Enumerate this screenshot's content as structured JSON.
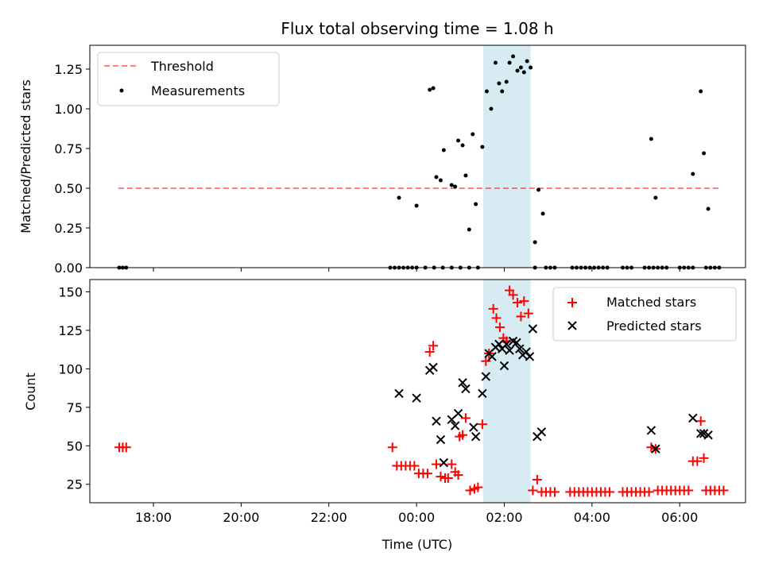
{
  "chart_data": [
    {
      "type": "scatter",
      "title": "Flux total observing time = 1.08 h",
      "xlabel": "",
      "ylabel": "Matched/Predicted stars",
      "xlim": [
        16.55,
        31.5
      ],
      "ylim": [
        0,
        1.4
      ],
      "y_ticks": [
        0,
        0.25,
        0.5,
        0.75,
        1.0,
        1.25
      ],
      "y_tick_labels": [
        "0.00",
        "0.25",
        "0.50",
        "0.75",
        "1.00",
        "1.25"
      ],
      "x_ticks": [
        18,
        20,
        22,
        24,
        26,
        28,
        30
      ],
      "highlight_span": [
        25.52,
        26.6
      ],
      "legend": {
        "position": "upper-left",
        "entries": [
          "Threshold",
          "Measurements"
        ]
      },
      "threshold": {
        "name": "Threshold",
        "value": 0.5,
        "x": [
          17.2,
          30.95
        ]
      },
      "series": [
        {
          "name": "Measurements",
          "points": [
            [
              17.22,
              0
            ],
            [
              17.3,
              0
            ],
            [
              17.38,
              0
            ],
            [
              23.4,
              0
            ],
            [
              23.5,
              0
            ],
            [
              23.6,
              0
            ],
            [
              23.7,
              0
            ],
            [
              23.8,
              0
            ],
            [
              23.9,
              0
            ],
            [
              24.0,
              0
            ],
            [
              24.2,
              0
            ],
            [
              24.4,
              0
            ],
            [
              24.6,
              0
            ],
            [
              24.8,
              0
            ],
            [
              25.0,
              0
            ],
            [
              25.2,
              0
            ],
            [
              25.4,
              0
            ],
            [
              26.7,
              0
            ],
            [
              26.95,
              0
            ],
            [
              27.05,
              0
            ],
            [
              27.15,
              0
            ],
            [
              27.55,
              0
            ],
            [
              27.65,
              0
            ],
            [
              27.75,
              0
            ],
            [
              27.85,
              0
            ],
            [
              27.95,
              0
            ],
            [
              28.05,
              0
            ],
            [
              28.15,
              0
            ],
            [
              28.25,
              0
            ],
            [
              28.35,
              0
            ],
            [
              28.7,
              0
            ],
            [
              28.8,
              0
            ],
            [
              28.9,
              0
            ],
            [
              29.2,
              0
            ],
            [
              29.3,
              0
            ],
            [
              29.4,
              0
            ],
            [
              29.5,
              0
            ],
            [
              29.6,
              0
            ],
            [
              29.7,
              0
            ],
            [
              30.0,
              0
            ],
            [
              30.1,
              0
            ],
            [
              30.2,
              0
            ],
            [
              30.3,
              0
            ],
            [
              30.6,
              0
            ],
            [
              30.7,
              0
            ],
            [
              30.8,
              0
            ],
            [
              30.9,
              0
            ],
            [
              23.6,
              0.44
            ],
            [
              24.0,
              0.39
            ],
            [
              24.3,
              1.12
            ],
            [
              24.38,
              1.13
            ],
            [
              24.45,
              0.57
            ],
            [
              24.55,
              0.55
            ],
            [
              24.62,
              0.74
            ],
            [
              24.8,
              0.52
            ],
            [
              24.88,
              0.51
            ],
            [
              24.95,
              0.8
            ],
            [
              25.05,
              0.77
            ],
            [
              25.12,
              0.58
            ],
            [
              25.2,
              0.24
            ],
            [
              25.28,
              0.84
            ],
            [
              25.35,
              0.4
            ],
            [
              25.5,
              0.76
            ],
            [
              25.6,
              1.11
            ],
            [
              25.7,
              1.0
            ],
            [
              25.8,
              1.29
            ],
            [
              25.88,
              1.16
            ],
            [
              25.95,
              1.11
            ],
            [
              26.05,
              1.17
            ],
            [
              26.12,
              1.29
            ],
            [
              26.2,
              1.33
            ],
            [
              26.3,
              1.24
            ],
            [
              26.38,
              1.26
            ],
            [
              26.45,
              1.23
            ],
            [
              26.52,
              1.3
            ],
            [
              26.6,
              1.26
            ],
            [
              26.7,
              0.16
            ],
            [
              26.78,
              0.49
            ],
            [
              26.88,
              0.34
            ],
            [
              29.35,
              0.81
            ],
            [
              29.45,
              0.44
            ],
            [
              30.3,
              0.59
            ],
            [
              30.48,
              1.11
            ],
            [
              30.55,
              0.72
            ],
            [
              30.65,
              0.37
            ]
          ]
        }
      ]
    },
    {
      "type": "scatter",
      "title": "",
      "xlabel": "Time (UTC)",
      "ylabel": "Count",
      "xlim": [
        16.55,
        31.5
      ],
      "ylim": [
        13,
        158
      ],
      "y_ticks": [
        25,
        50,
        75,
        100,
        125,
        150
      ],
      "y_tick_labels": [
        "25",
        "50",
        "75",
        "100",
        "125",
        "150"
      ],
      "x_ticks": [
        18,
        20,
        22,
        24,
        26,
        28,
        30
      ],
      "x_tick_labels": [
        "18:00",
        "20:00",
        "22:00",
        "00:00",
        "02:00",
        "04:00",
        "06:00"
      ],
      "highlight_span": [
        25.52,
        26.6
      ],
      "legend": {
        "position": "upper-right",
        "entries": [
          "Matched stars",
          "Predicted stars"
        ]
      },
      "series": [
        {
          "name": "Matched stars",
          "color": "#ff0000",
          "marker": "plus",
          "points": [
            [
              17.22,
              49
            ],
            [
              17.3,
              49
            ],
            [
              17.38,
              49
            ],
            [
              23.45,
              49
            ],
            [
              23.55,
              37
            ],
            [
              23.65,
              37
            ],
            [
              23.75,
              37
            ],
            [
              23.85,
              37
            ],
            [
              23.95,
              37
            ],
            [
              24.05,
              32
            ],
            [
              24.15,
              32
            ],
            [
              24.25,
              32
            ],
            [
              24.3,
              111
            ],
            [
              24.38,
              115
            ],
            [
              24.45,
              38
            ],
            [
              24.55,
              30
            ],
            [
              24.65,
              29
            ],
            [
              24.72,
              29
            ],
            [
              24.8,
              38
            ],
            [
              24.88,
              33
            ],
            [
              24.95,
              31
            ],
            [
              24.98,
              56
            ],
            [
              25.05,
              57
            ],
            [
              25.12,
              68
            ],
            [
              25.22,
              21
            ],
            [
              25.32,
              22
            ],
            [
              25.4,
              23
            ],
            [
              25.5,
              64
            ],
            [
              25.58,
              105
            ],
            [
              25.65,
              110
            ],
            [
              25.75,
              139
            ],
            [
              25.82,
              133
            ],
            [
              25.9,
              127
            ],
            [
              25.98,
              120
            ],
            [
              26.05,
              118
            ],
            [
              26.12,
              151
            ],
            [
              26.2,
              148
            ],
            [
              26.3,
              143
            ],
            [
              26.38,
              134
            ],
            [
              26.45,
              144
            ],
            [
              26.55,
              136
            ],
            [
              26.65,
              21
            ],
            [
              26.75,
              28
            ],
            [
              26.85,
              20
            ],
            [
              26.95,
              20
            ],
            [
              27.05,
              20
            ],
            [
              27.15,
              20
            ],
            [
              27.5,
              20
            ],
            [
              27.6,
              20
            ],
            [
              27.7,
              20
            ],
            [
              27.8,
              20
            ],
            [
              27.9,
              20
            ],
            [
              28.0,
              20
            ],
            [
              28.1,
              20
            ],
            [
              28.2,
              20
            ],
            [
              28.3,
              20
            ],
            [
              28.4,
              20
            ],
            [
              28.7,
              20
            ],
            [
              28.8,
              20
            ],
            [
              28.9,
              20
            ],
            [
              29.0,
              20
            ],
            [
              29.1,
              20
            ],
            [
              29.2,
              20
            ],
            [
              29.3,
              20
            ],
            [
              29.35,
              49
            ],
            [
              29.45,
              48
            ],
            [
              29.5,
              21
            ],
            [
              29.6,
              21
            ],
            [
              29.7,
              21
            ],
            [
              29.8,
              21
            ],
            [
              29.9,
              21
            ],
            [
              30.0,
              21
            ],
            [
              30.1,
              21
            ],
            [
              30.2,
              21
            ],
            [
              30.3,
              40
            ],
            [
              30.4,
              40
            ],
            [
              30.48,
              66
            ],
            [
              30.55,
              42
            ],
            [
              30.6,
              21
            ],
            [
              30.7,
              21
            ],
            [
              30.8,
              21
            ],
            [
              30.9,
              21
            ],
            [
              31.0,
              21
            ]
          ]
        },
        {
          "name": "Predicted stars",
          "color": "#000000",
          "marker": "x",
          "points": [
            [
              23.6,
              84
            ],
            [
              24.0,
              81
            ],
            [
              24.3,
              99
            ],
            [
              24.38,
              101
            ],
            [
              24.45,
              66
            ],
            [
              24.55,
              54
            ],
            [
              24.62,
              39
            ],
            [
              24.8,
              67
            ],
            [
              24.88,
              63
            ],
            [
              24.95,
              71
            ],
            [
              25.05,
              91
            ],
            [
              25.12,
              87
            ],
            [
              25.35,
              56
            ],
            [
              25.3,
              62
            ],
            [
              25.5,
              84
            ],
            [
              25.58,
              95
            ],
            [
              25.65,
              110
            ],
            [
              25.72,
              108
            ],
            [
              25.8,
              114
            ],
            [
              25.88,
              116
            ],
            [
              25.95,
              113
            ],
            [
              26.0,
              102
            ],
            [
              26.05,
              116
            ],
            [
              26.12,
              112
            ],
            [
              26.2,
              118
            ],
            [
              26.28,
              117
            ],
            [
              26.35,
              113
            ],
            [
              26.42,
              109
            ],
            [
              26.5,
              111
            ],
            [
              26.58,
              108
            ],
            [
              26.65,
              126
            ],
            [
              26.75,
              56
            ],
            [
              26.85,
              59
            ],
            [
              29.35,
              60
            ],
            [
              29.45,
              48
            ],
            [
              30.3,
              68
            ],
            [
              30.48,
              58
            ],
            [
              30.55,
              58
            ],
            [
              30.65,
              57
            ]
          ]
        }
      ]
    }
  ]
}
